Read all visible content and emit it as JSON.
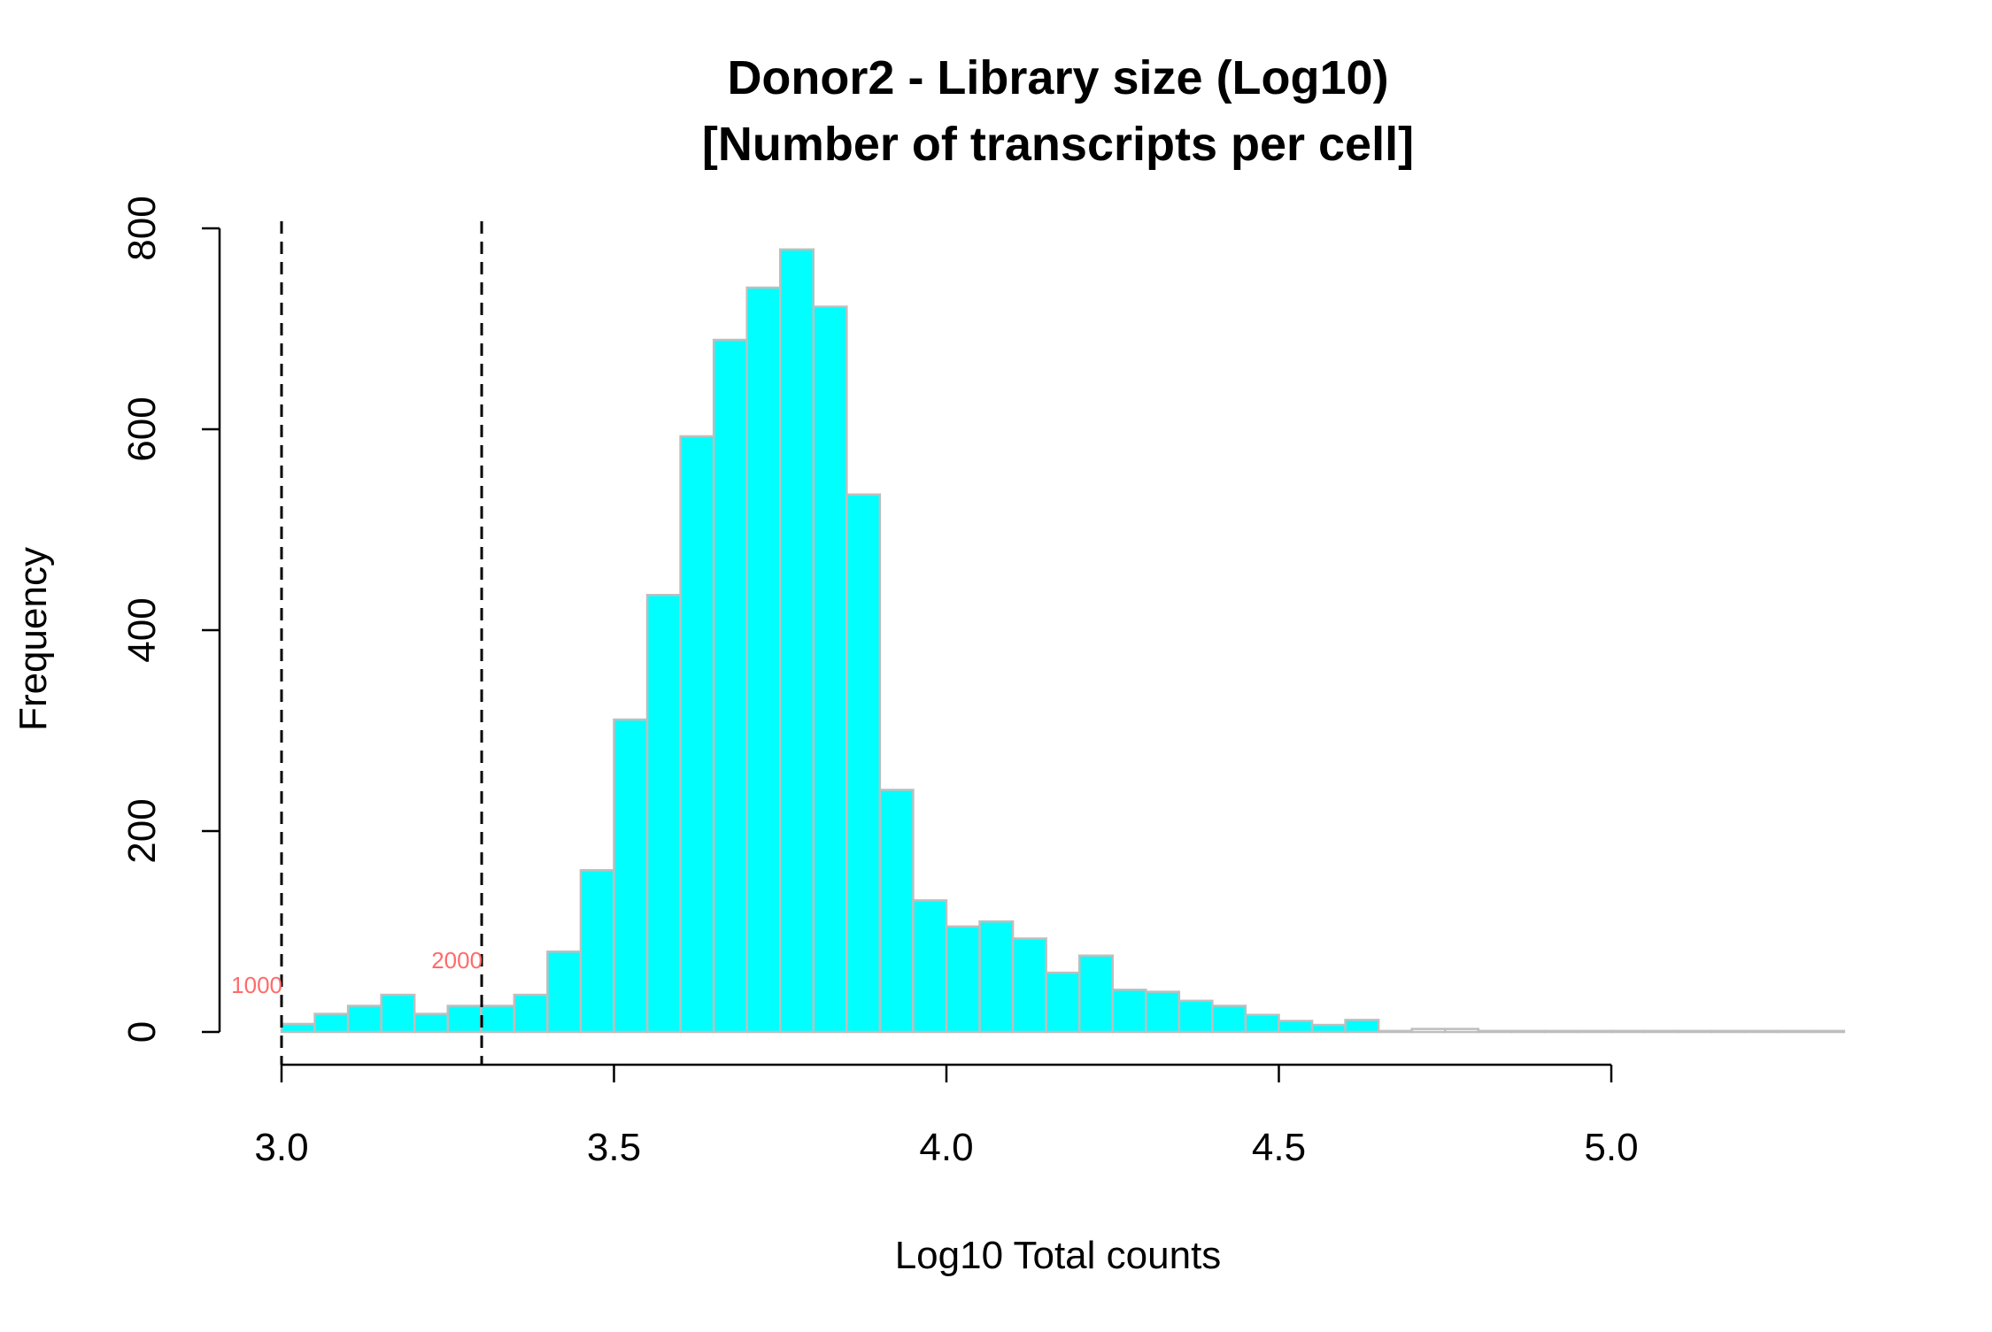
{
  "chart_data": {
    "type": "bar",
    "subtype": "histogram",
    "title": [
      "Donor2 - Library size (Log10)",
      "[Number of transcripts per cell]"
    ],
    "xlabel": "Log10 Total counts",
    "ylabel": "Frequency",
    "xlim": [
      3.0,
      5.35
    ],
    "ylim": [
      0,
      800
    ],
    "x_ticks": [
      3.0,
      3.5,
      4.0,
      4.5,
      5.0
    ],
    "x_tick_labels": [
      "3.0",
      "3.5",
      "4.0",
      "4.5",
      "5.0"
    ],
    "y_ticks": [
      0,
      200,
      400,
      600,
      800
    ],
    "y_tick_labels": [
      "0",
      "200",
      "400",
      "600",
      "800"
    ],
    "bin_width": 0.05,
    "bins": [
      {
        "start": 3.0,
        "end": 3.05,
        "count": 8,
        "highlight": true
      },
      {
        "start": 3.05,
        "end": 3.1,
        "count": 18,
        "highlight": true
      },
      {
        "start": 3.1,
        "end": 3.15,
        "count": 26,
        "highlight": true
      },
      {
        "start": 3.15,
        "end": 3.2,
        "count": 37,
        "highlight": true
      },
      {
        "start": 3.2,
        "end": 3.25,
        "count": 18,
        "highlight": true
      },
      {
        "start": 3.25,
        "end": 3.3,
        "count": 26,
        "highlight": true
      },
      {
        "start": 3.3,
        "end": 3.35,
        "count": 26,
        "highlight": true
      },
      {
        "start": 3.35,
        "end": 3.4,
        "count": 37,
        "highlight": true
      },
      {
        "start": 3.4,
        "end": 3.45,
        "count": 80,
        "highlight": true
      },
      {
        "start": 3.45,
        "end": 3.5,
        "count": 161,
        "highlight": true
      },
      {
        "start": 3.5,
        "end": 3.55,
        "count": 311,
        "highlight": true
      },
      {
        "start": 3.55,
        "end": 3.6,
        "count": 435,
        "highlight": true
      },
      {
        "start": 3.6,
        "end": 3.65,
        "count": 593,
        "highlight": true
      },
      {
        "start": 3.65,
        "end": 3.7,
        "count": 689,
        "highlight": true
      },
      {
        "start": 3.7,
        "end": 3.75,
        "count": 741,
        "highlight": true
      },
      {
        "start": 3.75,
        "end": 3.8,
        "count": 779,
        "highlight": true
      },
      {
        "start": 3.8,
        "end": 3.85,
        "count": 722,
        "highlight": true
      },
      {
        "start": 3.85,
        "end": 3.9,
        "count": 535,
        "highlight": true
      },
      {
        "start": 3.9,
        "end": 3.95,
        "count": 241,
        "highlight": true
      },
      {
        "start": 3.95,
        "end": 4.0,
        "count": 131,
        "highlight": true
      },
      {
        "start": 4.0,
        "end": 4.05,
        "count": 105,
        "highlight": true
      },
      {
        "start": 4.05,
        "end": 4.1,
        "count": 110,
        "highlight": true
      },
      {
        "start": 4.1,
        "end": 4.15,
        "count": 93,
        "highlight": true
      },
      {
        "start": 4.15,
        "end": 4.2,
        "count": 59,
        "highlight": true
      },
      {
        "start": 4.2,
        "end": 4.25,
        "count": 76,
        "highlight": true
      },
      {
        "start": 4.25,
        "end": 4.3,
        "count": 42,
        "highlight": true
      },
      {
        "start": 4.3,
        "end": 4.35,
        "count": 40,
        "highlight": true
      },
      {
        "start": 4.35,
        "end": 4.4,
        "count": 31,
        "highlight": true
      },
      {
        "start": 4.4,
        "end": 4.45,
        "count": 26,
        "highlight": true
      },
      {
        "start": 4.45,
        "end": 4.5,
        "count": 17,
        "highlight": true
      },
      {
        "start": 4.5,
        "end": 4.55,
        "count": 11,
        "highlight": true
      },
      {
        "start": 4.55,
        "end": 4.6,
        "count": 7,
        "highlight": true
      },
      {
        "start": 4.6,
        "end": 4.65,
        "count": 12,
        "highlight": true
      },
      {
        "start": 4.65,
        "end": 4.7,
        "count": 1,
        "highlight": false
      },
      {
        "start": 4.7,
        "end": 4.75,
        "count": 3,
        "highlight": false
      },
      {
        "start": 4.75,
        "end": 4.8,
        "count": 3,
        "highlight": false
      },
      {
        "start": 4.8,
        "end": 4.85,
        "count": 1,
        "highlight": false
      },
      {
        "start": 4.85,
        "end": 4.9,
        "count": 1,
        "highlight": false
      },
      {
        "start": 4.9,
        "end": 4.95,
        "count": 1,
        "highlight": false
      },
      {
        "start": 4.95,
        "end": 5.0,
        "count": 1,
        "highlight": false
      },
      {
        "start": 5.0,
        "end": 5.05,
        "count": 1,
        "highlight": false
      },
      {
        "start": 5.05,
        "end": 5.1,
        "count": 1,
        "highlight": false
      },
      {
        "start": 5.1,
        "end": 5.15,
        "count": 1,
        "highlight": false
      },
      {
        "start": 5.15,
        "end": 5.2,
        "count": 1,
        "highlight": false
      },
      {
        "start": 5.2,
        "end": 5.25,
        "count": 1,
        "highlight": false
      },
      {
        "start": 5.25,
        "end": 5.3,
        "count": 1,
        "highlight": false
      },
      {
        "start": 5.3,
        "end": 5.35,
        "count": 1,
        "highlight": false
      }
    ],
    "reference_lines": [
      {
        "x": 3.0,
        "label": "1000",
        "style": "dashed"
      },
      {
        "x": 3.301,
        "label": "2000",
        "style": "dashed"
      }
    ],
    "colors": {
      "highlight_fill": "#00ffff",
      "bar_border": "#bebebe",
      "other_fill": "#ffffff",
      "reference_line": "#000000",
      "reference_label": "#ff6b6b",
      "axis": "#000000"
    }
  }
}
